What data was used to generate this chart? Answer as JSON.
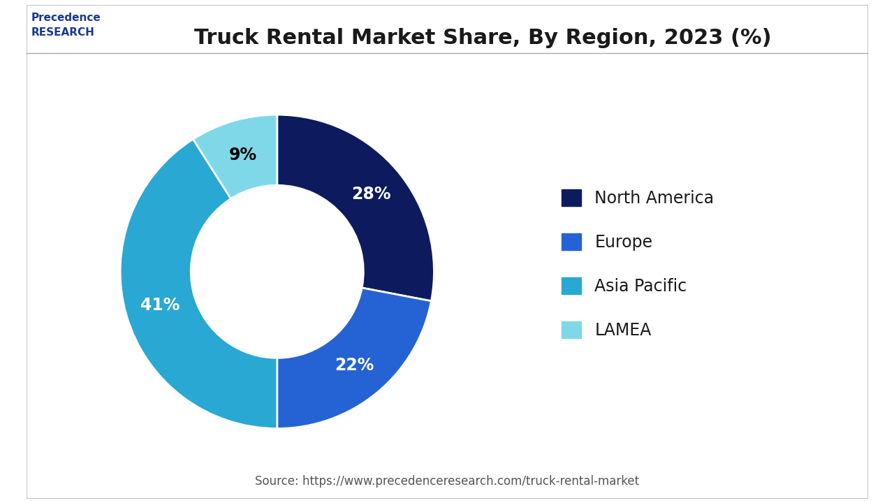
{
  "title": "Truck Rental Market Share, By Region, 2023 (%)",
  "segments": [
    {
      "label": "North America",
      "value": 28,
      "color": "#0d1b5e",
      "text_color": "white"
    },
    {
      "label": "Europe",
      "value": 22,
      "color": "#2563d4",
      "text_color": "white"
    },
    {
      "label": "Asia Pacific",
      "value": 41,
      "color": "#29a8d4",
      "text_color": "white"
    },
    {
      "label": "LAMEA",
      "value": 9,
      "color": "#7fd8e8",
      "text_color": "black"
    }
  ],
  "source_text": "Source: https://www.precedenceresearch.com/truck-rental-market",
  "background_color": "#ffffff",
  "title_fontsize": 22,
  "legend_fontsize": 17,
  "label_fontsize": 17,
  "source_fontsize": 12,
  "wedge_edge_color": "#ffffff",
  "start_angle": 90,
  "donut_width": 0.45
}
